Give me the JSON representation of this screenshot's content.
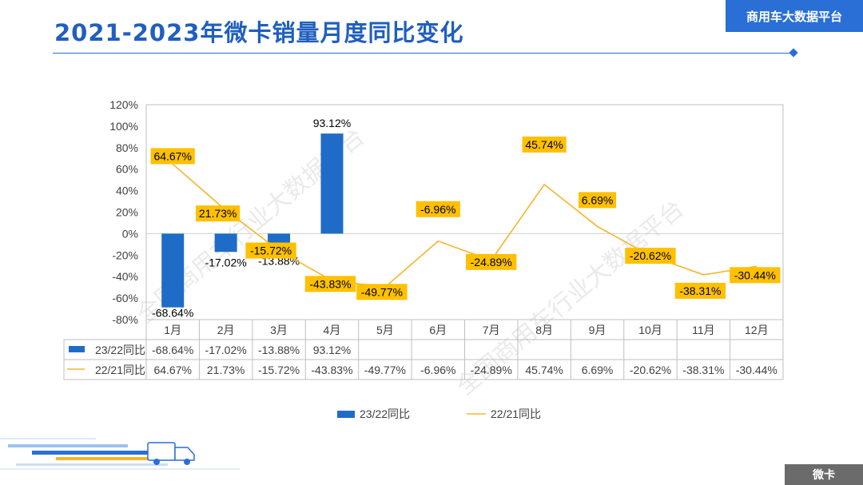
{
  "header": {
    "title": "2021-2023年微卡销量月度同比变化",
    "brand": "商用车大数据平台",
    "corner_tag": "微卡"
  },
  "watermark": [
    "全国商用车行业大数据平台",
    "全国商用车行业大数据平台"
  ],
  "colors": {
    "bar": "#1f6cc8",
    "line": "#f5b52a",
    "label_bg": "#ffc000",
    "accent": "#2a6fd6"
  },
  "chart_data": {
    "type": "bar+line",
    "categories": [
      "1月",
      "2月",
      "3月",
      "4月",
      "5月",
      "6月",
      "7月",
      "8月",
      "9月",
      "10月",
      "11月",
      "12月"
    ],
    "y_ticks": [
      "120%",
      "100%",
      "80%",
      "60%",
      "40%",
      "20%",
      "0%",
      "-20%",
      "-40%",
      "-60%",
      "-80%"
    ],
    "ylim": [
      -80,
      120
    ],
    "series": [
      {
        "name": "23/22同比",
        "type": "bar",
        "values": [
          -68.64,
          -17.02,
          -13.88,
          93.12,
          null,
          null,
          null,
          null,
          null,
          null,
          null,
          null
        ],
        "labels": [
          "-68.64%",
          "-17.02%",
          "-13.88%",
          "93.12%",
          "",
          "",
          "",
          "",
          "",
          "",
          "",
          ""
        ]
      },
      {
        "name": "22/21同比",
        "type": "line",
        "values": [
          64.67,
          21.73,
          -15.72,
          -43.83,
          -49.77,
          -6.96,
          -24.89,
          45.74,
          6.69,
          -20.62,
          -38.31,
          -30.44
        ],
        "labels": [
          "64.67%",
          "21.73%",
          "-15.72%",
          "-43.83%",
          "-49.77%",
          "-6.96%",
          "-24.89%",
          "45.74%",
          "6.69%",
          "-20.62%",
          "-38.31%",
          "-30.44%"
        ]
      }
    ],
    "legend": [
      "23/22同比",
      "22/21同比"
    ],
    "legend_position": "bottom",
    "grid": false
  }
}
